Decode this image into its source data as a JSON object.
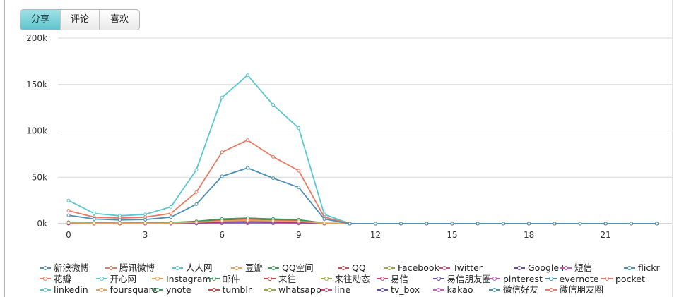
{
  "tabs": [
    {
      "label": "分享",
      "active": true
    },
    {
      "label": "评论",
      "active": false
    },
    {
      "label": "喜欢",
      "active": false
    }
  ],
  "chart_data": {
    "type": "line",
    "title": "",
    "xlabel": "",
    "ylabel": "",
    "xlim": [
      0,
      23
    ],
    "ylim": [
      0,
      200000
    ],
    "grid": true,
    "legend_position": "bottom",
    "x": [
      0,
      1,
      2,
      3,
      4,
      5,
      6,
      7,
      8,
      9,
      10,
      11,
      12,
      13,
      14,
      15,
      16,
      17,
      18,
      19,
      20,
      21,
      22,
      23
    ],
    "x_tick_labels": [
      "0",
      "3",
      "6",
      "9",
      "12",
      "15",
      "18",
      "21"
    ],
    "y_tick_labels": [
      "0k",
      "50k",
      "100k",
      "150k",
      "200k"
    ],
    "series": [
      {
        "name": "新浪微博",
        "color": "#4a8fb5",
        "values": [
          9000,
          5000,
          4000,
          4500,
          7000,
          21000,
          51000,
          60000,
          49000,
          39000,
          5000,
          0,
          0,
          0,
          0,
          0,
          0,
          0,
          0,
          0,
          0,
          0,
          0,
          0
        ]
      },
      {
        "name": "腾讯微博",
        "color": "#e87a62",
        "values": [
          14000,
          7000,
          6000,
          7000,
          11000,
          34000,
          77000,
          90000,
          72000,
          57000,
          7000,
          0,
          0,
          0,
          0,
          0,
          0,
          0,
          0,
          0,
          0,
          0,
          0,
          0
        ]
      },
      {
        "name": "人人网",
        "color": "#5ac7cf",
        "values": [
          25000,
          11000,
          8500,
          10000,
          18000,
          58000,
          136000,
          160000,
          128000,
          103000,
          10000,
          0,
          0,
          0,
          0,
          0,
          0,
          0,
          0,
          0,
          0,
          0,
          0,
          0
        ]
      },
      {
        "name": "豆瓣",
        "color": "#e8a058",
        "values": [
          1000,
          500,
          500,
          500,
          700,
          1500,
          3000,
          3500,
          3000,
          2500,
          500,
          0,
          0,
          0,
          0,
          0,
          0,
          0,
          0,
          0,
          0,
          0,
          0,
          0
        ]
      },
      {
        "name": "QQ空间",
        "color": "#3c9a5a",
        "values": [
          1500,
          800,
          700,
          800,
          1200,
          2500,
          5000,
          6000,
          5000,
          4200,
          600,
          0,
          0,
          0,
          0,
          0,
          0,
          0,
          0,
          0,
          0,
          0,
          0,
          0
        ]
      },
      {
        "name": "QQ",
        "color": "#d04a4a",
        "values": [
          1200,
          600,
          500,
          600,
          900,
          2000,
          4000,
          5000,
          4000,
          3500,
          500,
          0,
          0,
          0,
          0,
          0,
          0,
          0,
          0,
          0,
          0,
          0,
          0,
          0
        ]
      },
      {
        "name": "Facebook",
        "color": "#9aa848",
        "values": [
          1300,
          700,
          600,
          700,
          1000,
          2200,
          4500,
          5500,
          4500,
          3800,
          500,
          0,
          0,
          0,
          0,
          0,
          0,
          0,
          0,
          0,
          0,
          0,
          0,
          0
        ]
      },
      {
        "name": "Twitter",
        "color": "#d0487a",
        "values": [
          800,
          400,
          300,
          400,
          600,
          1200,
          2500,
          3000,
          2500,
          2000,
          300,
          0,
          0,
          0,
          0,
          0,
          0,
          0,
          0,
          0,
          0,
          0,
          0,
          0
        ]
      },
      {
        "name": "Google+",
        "color": "#6a4aa8",
        "values": [
          500,
          300,
          200,
          300,
          400,
          800,
          1500,
          2000,
          1500,
          1200,
          200,
          0,
          0,
          0,
          0,
          0,
          0,
          0,
          0,
          0,
          0,
          0,
          0,
          0
        ]
      },
      {
        "name": "短信",
        "color": "#c45ac0",
        "values": [
          300,
          200,
          100,
          200,
          300,
          500,
          900,
          1200,
          900,
          700,
          100,
          0,
          0,
          0,
          0,
          0,
          0,
          0,
          0,
          0,
          0,
          0,
          0,
          0
        ]
      },
      {
        "name": "flickr",
        "color": "#4a8fb5",
        "values": [
          200,
          100,
          100,
          100,
          200,
          300,
          600,
          800,
          600,
          500,
          100,
          0,
          0,
          0,
          0,
          0,
          0,
          0,
          0,
          0,
          0,
          0,
          0,
          0
        ]
      },
      {
        "name": "花瓣",
        "color": "#e87a62",
        "values": [
          200,
          100,
          100,
          100,
          200,
          300,
          600,
          800,
          600,
          500,
          100,
          0,
          0,
          0,
          0,
          0,
          0,
          0,
          0,
          0,
          0,
          0,
          0,
          0
        ]
      },
      {
        "name": "开心网",
        "color": "#5ac7cf",
        "values": [
          300,
          200,
          100,
          200,
          300,
          500,
          900,
          1200,
          900,
          700,
          100,
          0,
          0,
          0,
          0,
          0,
          0,
          0,
          0,
          0,
          0,
          0,
          0,
          0
        ]
      },
      {
        "name": "Instagram",
        "color": "#e8a058",
        "values": [
          200,
          100,
          100,
          100,
          200,
          300,
          600,
          800,
          600,
          500,
          100,
          0,
          0,
          0,
          0,
          0,
          0,
          0,
          0,
          0,
          0,
          0,
          0,
          0
        ]
      },
      {
        "name": "邮件",
        "color": "#3c9a5a",
        "values": [
          400,
          200,
          200,
          200,
          300,
          700,
          1500,
          1800,
          1500,
          1200,
          200,
          0,
          0,
          0,
          0,
          0,
          0,
          0,
          0,
          0,
          0,
          0,
          0,
          0
        ]
      },
      {
        "name": "来往",
        "color": "#d04a4a",
        "values": [
          100,
          50,
          50,
          50,
          100,
          200,
          400,
          500,
          400,
          300,
          50,
          0,
          0,
          0,
          0,
          0,
          0,
          0,
          0,
          0,
          0,
          0,
          0,
          0
        ]
      },
      {
        "name": "来往动态",
        "color": "#9aa848",
        "values": [
          100,
          50,
          50,
          50,
          100,
          200,
          400,
          500,
          400,
          300,
          50,
          0,
          0,
          0,
          0,
          0,
          0,
          0,
          0,
          0,
          0,
          0,
          0,
          0
        ]
      },
      {
        "name": "易信",
        "color": "#d0487a",
        "values": [
          100,
          50,
          50,
          50,
          100,
          200,
          400,
          500,
          400,
          300,
          50,
          0,
          0,
          0,
          0,
          0,
          0,
          0,
          0,
          0,
          0,
          0,
          0,
          0
        ]
      },
      {
        "name": "易信朋友圈",
        "color": "#6a4aa8",
        "values": [
          100,
          50,
          50,
          50,
          100,
          200,
          400,
          500,
          400,
          300,
          50,
          0,
          0,
          0,
          0,
          0,
          0,
          0,
          0,
          0,
          0,
          0,
          0,
          0
        ]
      },
      {
        "name": "pinterest",
        "color": "#c45ac0",
        "values": [
          100,
          50,
          50,
          50,
          100,
          200,
          400,
          500,
          400,
          300,
          50,
          0,
          0,
          0,
          0,
          0,
          0,
          0,
          0,
          0,
          0,
          0,
          0,
          0
        ]
      },
      {
        "name": "evernote",
        "color": "#4a8fb5",
        "values": [
          100,
          50,
          50,
          50,
          100,
          200,
          400,
          500,
          400,
          300,
          50,
          0,
          0,
          0,
          0,
          0,
          0,
          0,
          0,
          0,
          0,
          0,
          0,
          0
        ]
      },
      {
        "name": "pocket",
        "color": "#e87a62",
        "values": [
          100,
          50,
          50,
          50,
          100,
          200,
          400,
          500,
          400,
          300,
          50,
          0,
          0,
          0,
          0,
          0,
          0,
          0,
          0,
          0,
          0,
          0,
          0,
          0
        ]
      },
      {
        "name": "linkedin",
        "color": "#5ac7cf",
        "values": [
          100,
          50,
          50,
          50,
          100,
          200,
          400,
          500,
          400,
          300,
          50,
          0,
          0,
          0,
          0,
          0,
          0,
          0,
          0,
          0,
          0,
          0,
          0,
          0
        ]
      },
      {
        "name": "foursquare",
        "color": "#e8a058",
        "values": [
          100,
          50,
          50,
          50,
          100,
          200,
          400,
          500,
          400,
          300,
          50,
          0,
          0,
          0,
          0,
          0,
          0,
          0,
          0,
          0,
          0,
          0,
          0,
          0
        ]
      },
      {
        "name": "ynote",
        "color": "#3c9a5a",
        "values": [
          100,
          50,
          50,
          50,
          100,
          200,
          400,
          500,
          400,
          300,
          50,
          0,
          0,
          0,
          0,
          0,
          0,
          0,
          0,
          0,
          0,
          0,
          0,
          0
        ]
      },
      {
        "name": "tumblr",
        "color": "#d04a4a",
        "values": [
          100,
          50,
          50,
          50,
          100,
          200,
          400,
          500,
          400,
          300,
          50,
          0,
          0,
          0,
          0,
          0,
          0,
          0,
          0,
          0,
          0,
          0,
          0,
          0
        ]
      },
      {
        "name": "whatsapp",
        "color": "#9aa848",
        "values": [
          100,
          50,
          50,
          50,
          100,
          200,
          400,
          500,
          400,
          300,
          50,
          0,
          0,
          0,
          0,
          0,
          0,
          0,
          0,
          0,
          0,
          0,
          0,
          0
        ]
      },
      {
        "name": "line",
        "color": "#d0487a",
        "values": [
          100,
          50,
          50,
          50,
          100,
          200,
          400,
          500,
          400,
          300,
          50,
          0,
          0,
          0,
          0,
          0,
          0,
          0,
          0,
          0,
          0,
          0,
          0,
          0
        ]
      },
      {
        "name": "tv_box",
        "color": "#6a4aa8",
        "values": [
          100,
          50,
          50,
          50,
          100,
          200,
          400,
          500,
          400,
          300,
          50,
          0,
          0,
          0,
          0,
          0,
          0,
          0,
          0,
          0,
          0,
          0,
          0,
          0
        ]
      },
      {
        "name": "kakao",
        "color": "#c45ac0",
        "values": [
          100,
          50,
          50,
          50,
          100,
          200,
          400,
          500,
          400,
          300,
          50,
          0,
          0,
          0,
          0,
          0,
          0,
          0,
          0,
          0,
          0,
          0,
          0,
          0
        ]
      },
      {
        "name": "微信好友",
        "color": "#4a8fb5",
        "values": [
          300,
          200,
          100,
          200,
          300,
          500,
          900,
          1200,
          900,
          700,
          100,
          0,
          0,
          0,
          0,
          0,
          0,
          0,
          0,
          0,
          0,
          0,
          0,
          0
        ]
      },
      {
        "name": "微信朋友圈",
        "color": "#e87a62",
        "values": [
          300,
          200,
          100,
          200,
          300,
          500,
          900,
          1200,
          900,
          700,
          100,
          0,
          0,
          0,
          0,
          0,
          0,
          0,
          0,
          0,
          0,
          0,
          0,
          0
        ]
      }
    ]
  }
}
